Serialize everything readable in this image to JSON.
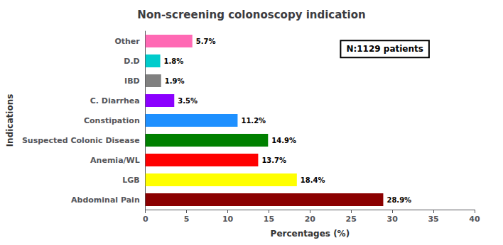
{
  "chart_data": {
    "type": "bar",
    "orientation": "horizontal",
    "title": "Non-screening colonoscopy indication",
    "xlabel": "Percentages (%)",
    "ylabel": "Indications",
    "categories": [
      "Abdominal Pain",
      "LGB",
      "Anemia/WL",
      "Suspected Colonic Disease",
      "Constipation",
      "C. Diarrhea",
      "IBD",
      "D.D",
      "Other"
    ],
    "values": [
      28.9,
      18.4,
      13.7,
      14.9,
      11.2,
      3.5,
      1.9,
      1.8,
      5.7
    ],
    "value_labels": [
      "28.9%",
      "18.4%",
      "13.7%",
      "14.9%",
      "11.2%",
      "3.5%",
      "1.9%",
      "1.8%",
      "5.7%"
    ],
    "data_labels": true,
    "colors": [
      "#8B0000",
      "#FFFF00",
      "#FF0000",
      "#008000",
      "#1E90FF",
      "#8B00FF",
      "#808080",
      "#00CCCC",
      "#FF69B4"
    ],
    "xlim": [
      0,
      40
    ],
    "xticks": [
      0,
      5,
      10,
      15,
      20,
      25,
      30,
      35,
      40
    ],
    "annotation": "N:1129 patients",
    "grid": false
  }
}
